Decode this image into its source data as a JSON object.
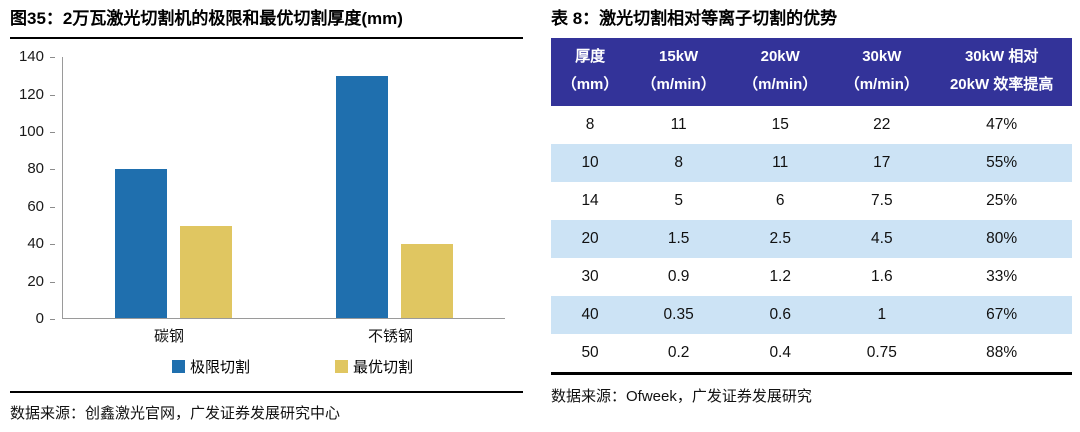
{
  "colors": {
    "bar_blue": "#1F6FAE",
    "bar_yellow": "#E0C661",
    "table_header_bg": "#333399",
    "table_row_alt_bg": "#CCE3F5",
    "axis_line": "#9a9a9a"
  },
  "left_panel": {
    "title": "图35：2万瓦激光切割机的极限和最优切割厚度(mm)",
    "source": "数据来源：创鑫激光官网，广发证券发展研究中心"
  },
  "right_panel": {
    "title": "表 8：激光切割相对等离子切割的优势",
    "source": "数据来源：Ofweek，广发证券发展研究"
  },
  "chart_data": [
    {
      "type": "bar",
      "title": "图35：2万瓦激光切割机的极限和最优切割厚度(mm)",
      "categories": [
        "碳钢",
        "不锈钢"
      ],
      "series": [
        {
          "name": "极限切割",
          "color": "#1F6FAE",
          "values": [
            80,
            130
          ]
        },
        {
          "name": "最优切割",
          "color": "#E0C661",
          "values": [
            50,
            40
          ]
        }
      ],
      "xlabel": "",
      "ylabel": "",
      "ylim": [
        0,
        140
      ],
      "ytick_step": 20,
      "grid": false,
      "legend_position": "bottom"
    },
    {
      "type": "table",
      "title": "表 8：激光切割相对等离子切割的优势",
      "header": [
        {
          "line1": "厚度",
          "line2": "（mm）"
        },
        {
          "line1": "15kW",
          "line2": "（m/min）"
        },
        {
          "line1": "20kW",
          "line2": "（m/min）"
        },
        {
          "line1": "30kW",
          "line2": "（m/min）"
        },
        {
          "line1": "30kW 相对",
          "line2": "20kW 效率提高"
        }
      ],
      "rows": [
        [
          "8",
          "11",
          "15",
          "22",
          "47%"
        ],
        [
          "10",
          "8",
          "11",
          "17",
          "55%"
        ],
        [
          "14",
          "5",
          "6",
          "7.5",
          "25%"
        ],
        [
          "20",
          "1.5",
          "2.5",
          "4.5",
          "80%"
        ],
        [
          "30",
          "0.9",
          "1.2",
          "1.6",
          "33%"
        ],
        [
          "40",
          "0.35",
          "0.6",
          "1",
          "67%"
        ],
        [
          "50",
          "0.2",
          "0.4",
          "0.75",
          "88%"
        ]
      ],
      "alt_row_indices": [
        1,
        3,
        5
      ]
    }
  ]
}
